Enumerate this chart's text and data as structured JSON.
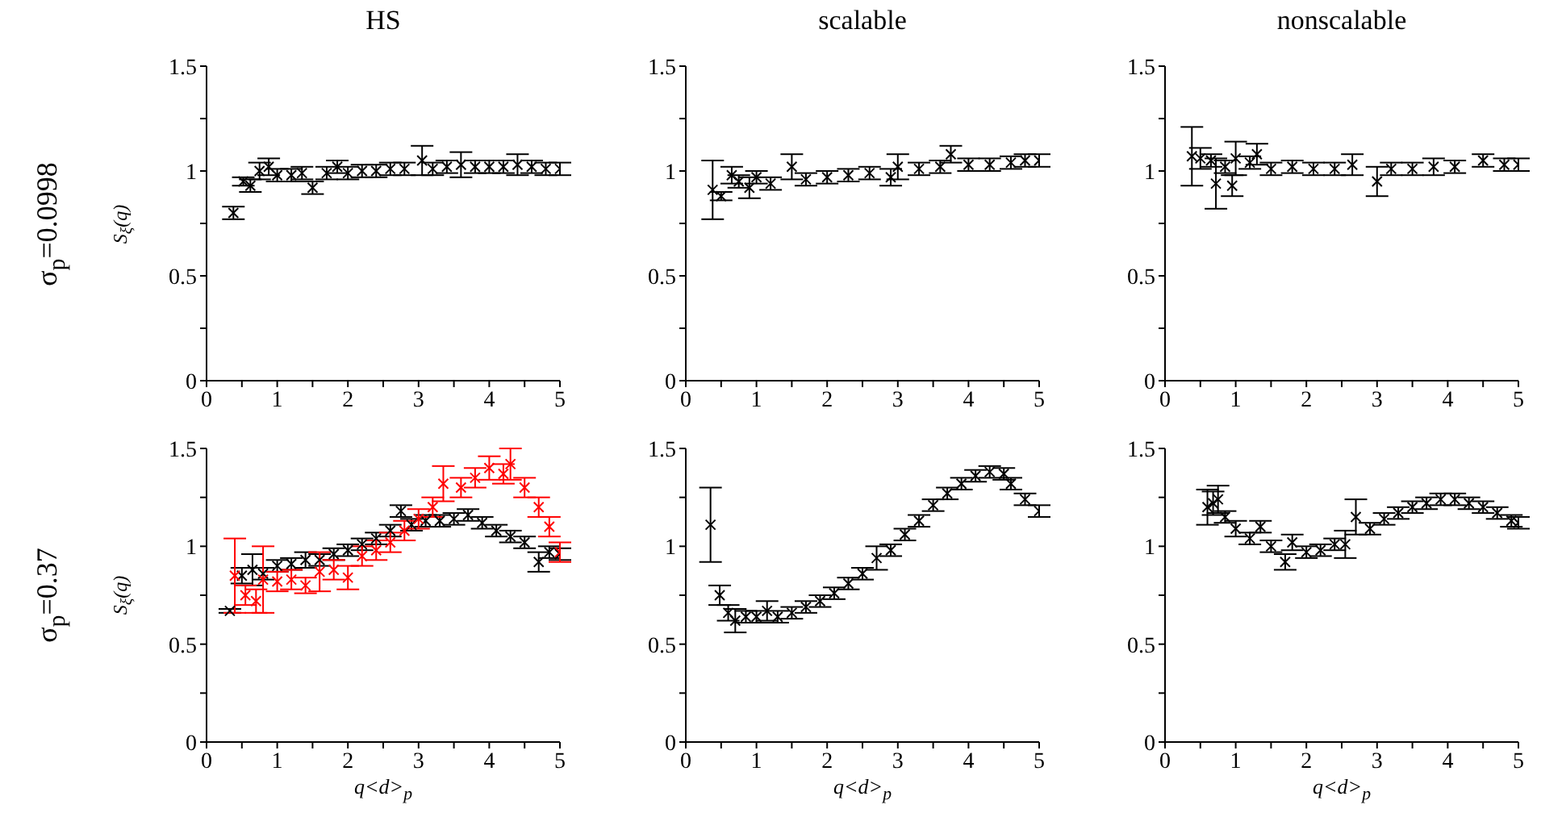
{
  "chart_data": [
    {
      "type": "scatter",
      "title": "HS",
      "ylabel": "S$_{ξ}$(q)",
      "annotations": [
        "σ$_{p}$=0.0998"
      ],
      "marker": "cross",
      "xlim": [
        0,
        5
      ],
      "ylim": [
        0,
        1.5
      ],
      "xticks": [
        0,
        {
          "value": 0.5,
          "label": null
        },
        1,
        {
          "value": 1.5,
          "label": null
        },
        2,
        {
          "value": 2.5,
          "label": null
        },
        3,
        {
          "value": 3.5,
          "label": null
        },
        4,
        {
          "value": 4.5,
          "label": null
        },
        5
      ],
      "yticks": [
        0,
        {
          "value": 0.25,
          "label": null
        },
        0.5,
        {
          "value": 0.75,
          "label": null
        },
        1,
        {
          "value": 1.25,
          "label": null
        },
        1.5
      ],
      "series": [
        {
          "color": "#000000",
          "x": [
            0.38,
            0.52,
            0.62,
            0.75,
            0.88,
            1.0,
            1.2,
            1.35,
            1.5,
            1.7,
            1.85,
            2.0,
            2.2,
            2.4,
            2.6,
            2.8,
            3.05,
            3.2,
            3.4,
            3.6,
            3.8,
            4.0,
            4.2,
            4.4,
            4.6,
            4.8,
            5.0
          ],
          "values": [
            0.8,
            0.95,
            0.93,
            1.0,
            1.02,
            0.98,
            0.98,
            0.99,
            0.92,
            0.99,
            1.02,
            0.99,
            1.0,
            1.0,
            1.01,
            1.01,
            1.05,
            1.01,
            1.02,
            1.03,
            1.02,
            1.02,
            1.02,
            1.03,
            1.02,
            1.01,
            1.01
          ],
          "errors": [
            0.03,
            0.02,
            0.03,
            0.04,
            0.04,
            0.03,
            0.03,
            0.03,
            0.03,
            0.03,
            0.03,
            0.03,
            0.03,
            0.03,
            0.03,
            0.03,
            0.07,
            0.03,
            0.03,
            0.06,
            0.03,
            0.03,
            0.03,
            0.05,
            0.03,
            0.03,
            0.03
          ]
        }
      ]
    },
    {
      "type": "scatter",
      "title": "scalable",
      "marker": "cross",
      "xlim": [
        0,
        5
      ],
      "ylim": [
        0,
        1.5
      ],
      "xticks": [
        0,
        {
          "value": 0.5,
          "label": null
        },
        1,
        {
          "value": 1.5,
          "label": null
        },
        2,
        {
          "value": 2.5,
          "label": null
        },
        3,
        {
          "value": 3.5,
          "label": null
        },
        4,
        {
          "value": 4.5,
          "label": null
        },
        5
      ],
      "yticks": [
        0,
        {
          "value": 0.25,
          "label": null
        },
        0.5,
        {
          "value": 0.75,
          "label": null
        },
        1,
        {
          "value": 1.25,
          "label": null
        },
        1.5
      ],
      "series": [
        {
          "color": "#000000",
          "x": [
            0.38,
            0.5,
            0.65,
            0.75,
            0.9,
            1.0,
            1.2,
            1.5,
            1.7,
            2.0,
            2.3,
            2.6,
            2.9,
            3.0,
            3.3,
            3.6,
            3.75,
            4.0,
            4.3,
            4.6,
            4.8,
            5.0
          ],
          "values": [
            0.91,
            0.88,
            0.98,
            0.95,
            0.92,
            0.97,
            0.94,
            1.02,
            0.96,
            0.97,
            0.98,
            0.99,
            0.97,
            1.02,
            1.01,
            1.02,
            1.08,
            1.03,
            1.03,
            1.04,
            1.05,
            1.05
          ],
          "errors": [
            0.14,
            0.02,
            0.04,
            0.03,
            0.05,
            0.03,
            0.03,
            0.06,
            0.03,
            0.03,
            0.03,
            0.03,
            0.04,
            0.06,
            0.03,
            0.03,
            0.04,
            0.03,
            0.03,
            0.03,
            0.03,
            0.03
          ]
        }
      ]
    },
    {
      "type": "scatter",
      "title": "nonscalable",
      "marker": "cross",
      "xlim": [
        0,
        5
      ],
      "ylim": [
        0,
        1.5
      ],
      "xticks": [
        0,
        {
          "value": 0.5,
          "label": null
        },
        1,
        {
          "value": 1.5,
          "label": null
        },
        2,
        {
          "value": 2.5,
          "label": null
        },
        3,
        {
          "value": 3.5,
          "label": null
        },
        4,
        {
          "value": 4.5,
          "label": null
        },
        5
      ],
      "yticks": [
        0,
        {
          "value": 0.25,
          "label": null
        },
        0.5,
        {
          "value": 0.75,
          "label": null
        },
        1,
        {
          "value": 1.25,
          "label": null
        },
        1.5
      ],
      "series": [
        {
          "color": "#000000",
          "x": [
            0.38,
            0.5,
            0.65,
            0.72,
            0.85,
            0.95,
            1.0,
            1.2,
            1.3,
            1.5,
            1.8,
            2.1,
            2.4,
            2.65,
            3.0,
            3.2,
            3.5,
            3.8,
            4.1,
            4.5,
            4.8,
            5.0
          ],
          "values": [
            1.07,
            1.06,
            1.05,
            0.94,
            1.02,
            0.93,
            1.06,
            1.04,
            1.08,
            1.01,
            1.02,
            1.01,
            1.01,
            1.03,
            0.95,
            1.01,
            1.01,
            1.02,
            1.02,
            1.05,
            1.03,
            1.03
          ],
          "errors": [
            0.14,
            0.05,
            0.03,
            0.12,
            0.03,
            0.05,
            0.08,
            0.03,
            0.05,
            0.03,
            0.03,
            0.03,
            0.03,
            0.05,
            0.07,
            0.03,
            0.03,
            0.04,
            0.03,
            0.03,
            0.03,
            0.03
          ]
        }
      ]
    },
    {
      "type": "scatter",
      "xlabel": "q<d>$_{p}$",
      "ylabel": "S$_{ξ}$(q)",
      "annotations": [
        "σ$_{p}$=0.37"
      ],
      "marker": "cross",
      "xlim": [
        0,
        5
      ],
      "ylim": [
        0,
        1.5
      ],
      "xticks": [
        0,
        {
          "value": 0.5,
          "label": null
        },
        1,
        {
          "value": 1.5,
          "label": null
        },
        2,
        {
          "value": 2.5,
          "label": null
        },
        3,
        {
          "value": 3.5,
          "label": null
        },
        4,
        {
          "value": 4.5,
          "label": null
        },
        5
      ],
      "yticks": [
        0,
        {
          "value": 0.25,
          "label": null
        },
        0.5,
        {
          "value": 0.75,
          "label": null
        },
        1,
        {
          "value": 1.25,
          "label": null
        },
        1.5
      ],
      "series": [
        {
          "color": "#000000",
          "x": [
            0.33,
            0.5,
            0.65,
            0.8,
            1.0,
            1.2,
            1.4,
            1.6,
            1.8,
            2.0,
            2.2,
            2.4,
            2.6,
            2.75,
            2.9,
            3.1,
            3.3,
            3.5,
            3.7,
            3.9,
            4.1,
            4.3,
            4.5,
            4.7,
            4.85,
            5.0
          ],
          "values": [
            0.67,
            0.85,
            0.88,
            0.86,
            0.9,
            0.91,
            0.93,
            0.93,
            0.96,
            0.98,
            1.01,
            1.04,
            1.08,
            1.18,
            1.11,
            1.13,
            1.13,
            1.14,
            1.16,
            1.12,
            1.08,
            1.05,
            1.02,
            0.92,
            0.97,
            0.96
          ],
          "errors": [
            0.01,
            0.04,
            0.08,
            0.03,
            0.03,
            0.03,
            0.04,
            0.03,
            0.03,
            0.03,
            0.03,
            0.03,
            0.03,
            0.03,
            0.03,
            0.03,
            0.03,
            0.03,
            0.03,
            0.03,
            0.03,
            0.03,
            0.03,
            0.05,
            0.03,
            0.03
          ]
        },
        {
          "color": "#ff0000",
          "x": [
            0.4,
            0.55,
            0.7,
            0.8,
            1.0,
            1.2,
            1.4,
            1.6,
            1.8,
            2.0,
            2.2,
            2.4,
            2.6,
            2.8,
            3.0,
            3.2,
            3.35,
            3.6,
            3.8,
            4.0,
            4.2,
            4.3,
            4.5,
            4.7,
            4.85,
            5.0
          ],
          "values": [
            0.85,
            0.75,
            0.72,
            0.83,
            0.82,
            0.83,
            0.8,
            0.87,
            0.88,
            0.84,
            0.95,
            0.98,
            1.02,
            1.08,
            1.14,
            1.2,
            1.32,
            1.3,
            1.35,
            1.4,
            1.37,
            1.42,
            1.3,
            1.2,
            1.1,
            0.97
          ],
          "errors": [
            0.19,
            0.05,
            0.06,
            0.17,
            0.05,
            0.05,
            0.04,
            0.1,
            0.05,
            0.06,
            0.05,
            0.05,
            0.05,
            0.05,
            0.05,
            0.05,
            0.09,
            0.05,
            0.05,
            0.06,
            0.05,
            0.08,
            0.05,
            0.05,
            0.05,
            0.05
          ]
        }
      ]
    },
    {
      "type": "scatter",
      "xlabel": "q<d>$_{p}$",
      "marker": "cross",
      "xlim": [
        0,
        5
      ],
      "ylim": [
        0,
        1.5
      ],
      "xticks": [
        0,
        {
          "value": 0.5,
          "label": null
        },
        1,
        {
          "value": 1.5,
          "label": null
        },
        2,
        {
          "value": 2.5,
          "label": null
        },
        3,
        {
          "value": 3.5,
          "label": null
        },
        4,
        {
          "value": 4.5,
          "label": null
        },
        5
      ],
      "yticks": [
        0,
        {
          "value": 0.25,
          "label": null
        },
        0.5,
        {
          "value": 0.75,
          "label": null
        },
        1,
        {
          "value": 1.25,
          "label": null
        },
        1.5
      ],
      "series": [
        {
          "color": "#000000",
          "x": [
            0.35,
            0.48,
            0.6,
            0.7,
            0.85,
            1.0,
            1.15,
            1.3,
            1.5,
            1.7,
            1.9,
            2.1,
            2.3,
            2.5,
            2.7,
            2.9,
            3.1,
            3.3,
            3.5,
            3.7,
            3.9,
            4.1,
            4.3,
            4.5,
            4.6,
            4.8,
            5.0
          ],
          "values": [
            1.11,
            0.75,
            0.66,
            0.62,
            0.64,
            0.64,
            0.67,
            0.64,
            0.66,
            0.69,
            0.72,
            0.76,
            0.81,
            0.86,
            0.94,
            0.98,
            1.06,
            1.13,
            1.21,
            1.27,
            1.32,
            1.36,
            1.38,
            1.37,
            1.32,
            1.24,
            1.18
          ],
          "errors": [
            0.19,
            0.05,
            0.04,
            0.06,
            0.03,
            0.03,
            0.05,
            0.03,
            0.03,
            0.03,
            0.03,
            0.03,
            0.03,
            0.03,
            0.06,
            0.03,
            0.03,
            0.03,
            0.03,
            0.03,
            0.03,
            0.03,
            0.03,
            0.03,
            0.03,
            0.03,
            0.03
          ]
        }
      ]
    },
    {
      "type": "scatter",
      "xlabel": "q<d>$_{p}$",
      "marker": "cross",
      "xlim": [
        0,
        5
      ],
      "ylim": [
        0,
        1.5
      ],
      "xticks": [
        0,
        {
          "value": 0.5,
          "label": null
        },
        1,
        {
          "value": 1.5,
          "label": null
        },
        2,
        {
          "value": 2.5,
          "label": null
        },
        3,
        {
          "value": 3.5,
          "label": null
        },
        4,
        {
          "value": 4.5,
          "label": null
        },
        5
      ],
      "yticks": [
        0,
        {
          "value": 0.25,
          "label": null
        },
        0.5,
        {
          "value": 0.75,
          "label": null
        },
        1,
        {
          "value": 1.25,
          "label": null
        },
        1.5
      ],
      "series": [
        {
          "color": "#000000",
          "x": [
            0.6,
            0.68,
            0.75,
            0.85,
            1.0,
            1.2,
            1.35,
            1.5,
            1.7,
            1.8,
            2.0,
            2.2,
            2.4,
            2.55,
            2.7,
            2.9,
            3.1,
            3.3,
            3.5,
            3.7,
            3.9,
            4.1,
            4.3,
            4.5,
            4.7,
            4.9,
            5.0
          ],
          "values": [
            1.2,
            1.22,
            1.24,
            1.15,
            1.09,
            1.04,
            1.1,
            1.0,
            0.92,
            1.02,
            0.97,
            0.98,
            1.01,
            1.01,
            1.15,
            1.09,
            1.14,
            1.17,
            1.2,
            1.22,
            1.24,
            1.24,
            1.22,
            1.2,
            1.17,
            1.13,
            1.12
          ],
          "errors": [
            0.09,
            0.06,
            0.07,
            0.03,
            0.04,
            0.03,
            0.03,
            0.03,
            0.04,
            0.04,
            0.03,
            0.03,
            0.03,
            0.07,
            0.09,
            0.03,
            0.03,
            0.03,
            0.03,
            0.03,
            0.03,
            0.03,
            0.03,
            0.03,
            0.03,
            0.03,
            0.03
          ]
        }
      ]
    }
  ]
}
